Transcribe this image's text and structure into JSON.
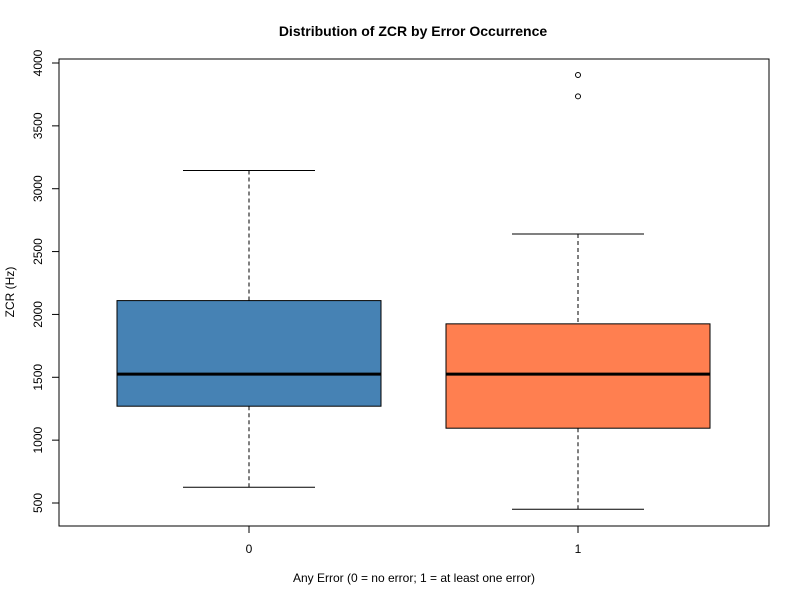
{
  "chart_data": {
    "type": "boxplot",
    "title": "Distribution of ZCR by Error Occurrence",
    "xlabel": "Any Error (0 = no error; 1 = at least one error)",
    "ylabel": "ZCR (Hz)",
    "ylim": [
      320,
      4060
    ],
    "yticks": [
      500,
      1000,
      1500,
      2000,
      2500,
      3000,
      3500,
      4000
    ],
    "ytick_labels": [
      "500",
      "1000",
      "1500",
      "2000",
      "2500",
      "3000",
      "3500",
      "4000"
    ],
    "grid": false,
    "groups": [
      {
        "category": "0",
        "whisker_low": 625,
        "q1": 1270,
        "median": 1525,
        "q3": 2110,
        "whisker_high": 3145,
        "outliers": [],
        "color": "#4682B4"
      },
      {
        "category": "1",
        "whisker_low": 450,
        "q1": 1095,
        "median": 1525,
        "q3": 1925,
        "whisker_high": 2640,
        "outliers": [
          3735,
          3905
        ],
        "color": "#FF7F50"
      }
    ]
  }
}
